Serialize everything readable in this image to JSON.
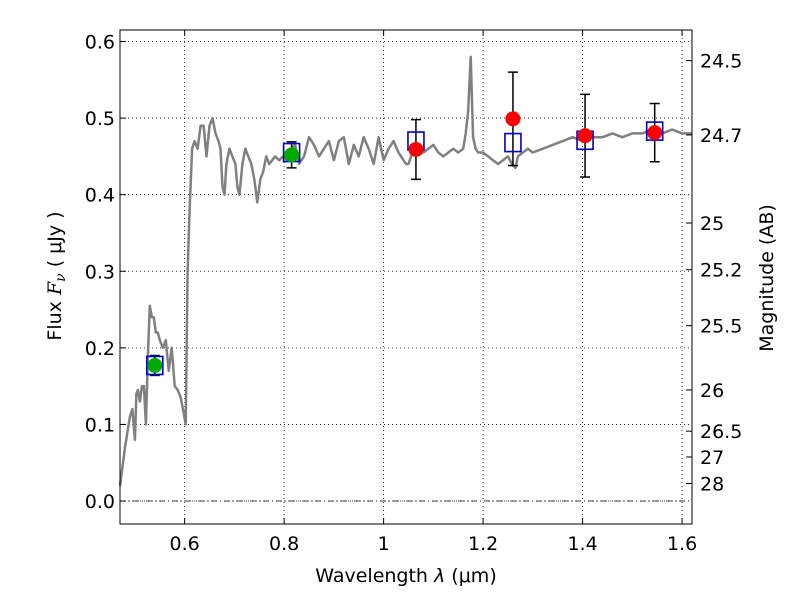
{
  "chart_data": {
    "type": "scatter",
    "title": "",
    "xlabel": "Wavelength  λ (μm)",
    "ylabel": "Flux  F_ν  ( μJy )",
    "ylabel_parts": {
      "prefix": "Flux  ",
      "symbol": "F",
      "subscript": "ν",
      "suffix": "  ( μJy )"
    },
    "xlabel_parts": {
      "prefix": "Wavelength  ",
      "symbol": "λ",
      "suffix": " (μm)"
    },
    "y2label": "Magnitude (AB)",
    "xlim": [
      0.47,
      1.62
    ],
    "ylim": [
      -0.03,
      0.615
    ],
    "grid": true,
    "x_ticks": [
      {
        "value": 0.6,
        "label": "0.6"
      },
      {
        "value": 0.8,
        "label": "0.8"
      },
      {
        "value": 1.0,
        "label": "1"
      },
      {
        "value": 1.2,
        "label": "1.2"
      },
      {
        "value": 1.4,
        "label": "1.4"
      },
      {
        "value": 1.6,
        "label": "1.6"
      }
    ],
    "y_ticks": [
      {
        "value": 0.0,
        "label": "0.0"
      },
      {
        "value": 0.1,
        "label": "0.1"
      },
      {
        "value": 0.2,
        "label": "0.2"
      },
      {
        "value": 0.3,
        "label": "0.3"
      },
      {
        "value": 0.4,
        "label": "0.4"
      },
      {
        "value": 0.5,
        "label": "0.5"
      },
      {
        "value": 0.6,
        "label": "0.6"
      }
    ],
    "right_ticks": [
      {
        "label": "24.5",
        "flux": 0.575
      },
      {
        "label": "24.7",
        "flux": 0.478
      },
      {
        "label": "25",
        "flux": 0.363
      },
      {
        "label": "25.2",
        "flux": 0.302
      },
      {
        "label": "25.5",
        "flux": 0.229
      },
      {
        "label": "26",
        "flux": 0.145
      },
      {
        "label": "26.5",
        "flux": 0.0912
      },
      {
        "label": "27",
        "flux": 0.0575
      },
      {
        "label": "28",
        "flux": 0.0229
      }
    ],
    "colors": {
      "spectrum": "#808080",
      "model": "#0000cc",
      "optical_obs": "#00aa00",
      "nir_obs": "#ff0000",
      "errorbar": "#000000",
      "zero_line": "#000000"
    },
    "series": [
      {
        "name": "spectrum",
        "kind": "line",
        "x": [
          0.47,
          0.48,
          0.49,
          0.495,
          0.5,
          0.503,
          0.506,
          0.51,
          0.514,
          0.518,
          0.522,
          0.526,
          0.53,
          0.534,
          0.538,
          0.542,
          0.546,
          0.55,
          0.556,
          0.562,
          0.568,
          0.574,
          0.58,
          0.586,
          0.592,
          0.598,
          0.602,
          0.606,
          0.61,
          0.615,
          0.62,
          0.626,
          0.632,
          0.638,
          0.644,
          0.65,
          0.656,
          0.662,
          0.668,
          0.672,
          0.676,
          0.68,
          0.684,
          0.69,
          0.696,
          0.702,
          0.706,
          0.71,
          0.716,
          0.722,
          0.728,
          0.734,
          0.74,
          0.746,
          0.752,
          0.758,
          0.764,
          0.77,
          0.776,
          0.782,
          0.79,
          0.798,
          0.806,
          0.814,
          0.822,
          0.83,
          0.84,
          0.85,
          0.86,
          0.87,
          0.88,
          0.89,
          0.9,
          0.91,
          0.92,
          0.93,
          0.94,
          0.95,
          0.96,
          0.97,
          0.98,
          0.99,
          1.0,
          1.01,
          1.02,
          1.03,
          1.04,
          1.045,
          1.05,
          1.06,
          1.07,
          1.08,
          1.09,
          1.1,
          1.11,
          1.12,
          1.13,
          1.14,
          1.15,
          1.16,
          1.165,
          1.17,
          1.175,
          1.18,
          1.185,
          1.19,
          1.2,
          1.21,
          1.22,
          1.23,
          1.24,
          1.25,
          1.258,
          1.265,
          1.27,
          1.28,
          1.29,
          1.3,
          1.32,
          1.34,
          1.36,
          1.38,
          1.4,
          1.42,
          1.44,
          1.46,
          1.48,
          1.5,
          1.52,
          1.54,
          1.56,
          1.58,
          1.6,
          1.62
        ],
        "y": [
          0.02,
          0.07,
          0.11,
          0.12,
          0.08,
          0.14,
          0.145,
          0.13,
          0.15,
          0.15,
          0.1,
          0.19,
          0.255,
          0.24,
          0.24,
          0.22,
          0.22,
          0.21,
          0.2,
          0.21,
          0.17,
          0.2,
          0.15,
          0.145,
          0.135,
          0.115,
          0.1,
          0.3,
          0.38,
          0.46,
          0.47,
          0.46,
          0.49,
          0.49,
          0.45,
          0.49,
          0.5,
          0.48,
          0.47,
          0.46,
          0.41,
          0.4,
          0.44,
          0.46,
          0.45,
          0.44,
          0.41,
          0.4,
          0.44,
          0.46,
          0.45,
          0.44,
          0.42,
          0.39,
          0.42,
          0.43,
          0.45,
          0.44,
          0.445,
          0.45,
          0.445,
          0.45,
          0.445,
          0.46,
          0.465,
          0.44,
          0.45,
          0.475,
          0.465,
          0.45,
          0.46,
          0.47,
          0.445,
          0.47,
          0.475,
          0.44,
          0.465,
          0.45,
          0.475,
          0.46,
          0.44,
          0.475,
          0.445,
          0.46,
          0.47,
          0.455,
          0.445,
          0.44,
          0.44,
          0.46,
          0.465,
          0.455,
          0.46,
          0.465,
          0.455,
          0.45,
          0.455,
          0.46,
          0.455,
          0.46,
          0.48,
          0.51,
          0.58,
          0.475,
          0.46,
          0.455,
          0.455,
          0.45,
          0.445,
          0.44,
          0.445,
          0.45,
          0.44,
          0.435,
          0.45,
          0.455,
          0.46,
          0.455,
          0.46,
          0.465,
          0.47,
          0.475,
          0.47,
          0.475,
          0.475,
          0.48,
          0.475,
          0.48,
          0.48,
          0.485,
          0.48,
          0.485,
          0.48,
          0.48
        ]
      },
      {
        "name": "model photometry",
        "kind": "open-square",
        "x": [
          0.54,
          0.815,
          1.065,
          1.26,
          1.405,
          1.545
        ],
        "y": [
          0.177,
          0.455,
          0.47,
          0.468,
          0.471,
          0.483
        ]
      },
      {
        "name": "optical photometry",
        "kind": "filled-circle",
        "x": [
          0.54,
          0.815
        ],
        "y": [
          0.177,
          0.452
        ],
        "yerr": [
          0.013,
          0.017
        ]
      },
      {
        "name": "near-IR photometry",
        "kind": "filled-circle",
        "x": [
          1.065,
          1.26,
          1.405,
          1.545
        ],
        "y": [
          0.459,
          0.499,
          0.477,
          0.481
        ],
        "yerr": [
          0.039,
          0.061,
          0.054,
          0.038
        ]
      }
    ]
  }
}
